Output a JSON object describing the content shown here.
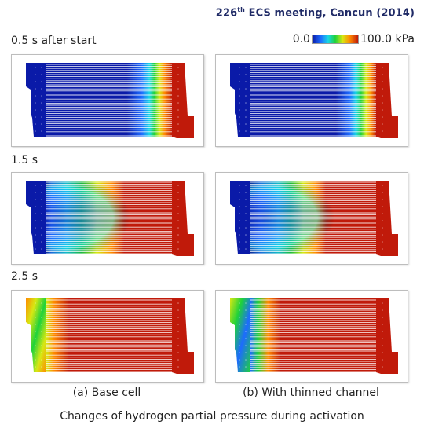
{
  "header": {
    "meeting_ordinal": "226",
    "meeting_suffix": "th",
    "meeting_rest": " ECS meeting, Cancun (2014)"
  },
  "legend": {
    "min_label": "0.0",
    "max_label": "100.0 kPa",
    "colors": [
      "#0a1aa8",
      "#1d6bff",
      "#18d6e6",
      "#1fd23a",
      "#d7e813",
      "#ff8a00",
      "#c01a0a"
    ]
  },
  "rows": [
    {
      "label": "0.5 s after start"
    },
    {
      "label": "1.5 s"
    },
    {
      "label": "2.5 s"
    }
  ],
  "columns": [
    {
      "caption": "(a) Base cell"
    },
    {
      "caption": "(b) With thinned channel"
    }
  ],
  "caption": "Changes of hydrogen partial pressure during activation"
}
